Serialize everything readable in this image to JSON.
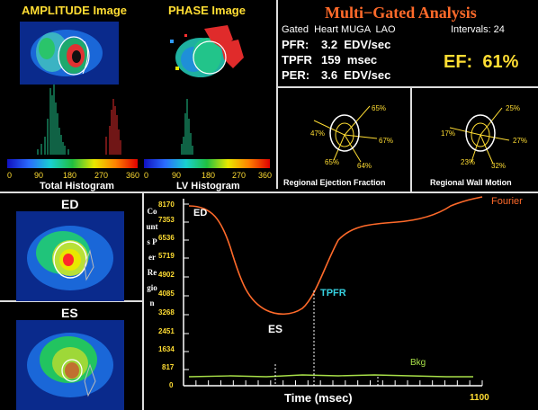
{
  "top_left": {
    "amplitude_title": "AMPLITUDE Image",
    "phase_title": "PHASE Image",
    "scale_ticks": [
      "0",
      "90",
      "180",
      "270",
      "360"
    ],
    "total_histogram_label": "Total Histogram",
    "lv_histogram_label": "LV Histogram"
  },
  "analysis": {
    "title": "Multi−Gated Analysis",
    "subtitle": "Gated  Heart MUGA  LAO",
    "intervals": "Intervals: 24",
    "metrics": [
      {
        "label": "PFR:",
        "value": "3.2  EDV/sec"
      },
      {
        "label": "TPFR",
        "value": "159  msec"
      },
      {
        "label": "PER:",
        "value": "3.6  EDV/sec"
      }
    ],
    "ef": "EF:  61%"
  },
  "regional": {
    "ef_title": "Regional Ejection Fraction",
    "wm_title": "Regional Wall Motion",
    "ef_values": [
      "65%",
      "47%",
      "67%",
      "65%",
      "64%"
    ],
    "wm_values": [
      "25%",
      "17%",
      "27%",
      "23%",
      "32%"
    ]
  },
  "bottom_left": {
    "ed_label": "ED",
    "es_label": "ES"
  },
  "curve": {
    "ylabel": "Counts Per Region",
    "xlabel": "Time (msec)",
    "x_end": "1100",
    "y_ticks": [
      "8170",
      "7353",
      "6536",
      "5719",
      "4902",
      "4085",
      "3268",
      "2451",
      "1634",
      "817",
      "0"
    ],
    "labels": {
      "ed": "ED",
      "es": "ES",
      "tpfr": "TPFR",
      "fourier": "Fourier",
      "bkg": "Bkg"
    }
  },
  "colors": {
    "yellow": "#ffdd33",
    "orange": "#ff6a2a",
    "green_bkg": "#a8e048",
    "cyan": "#36d1e0"
  }
}
